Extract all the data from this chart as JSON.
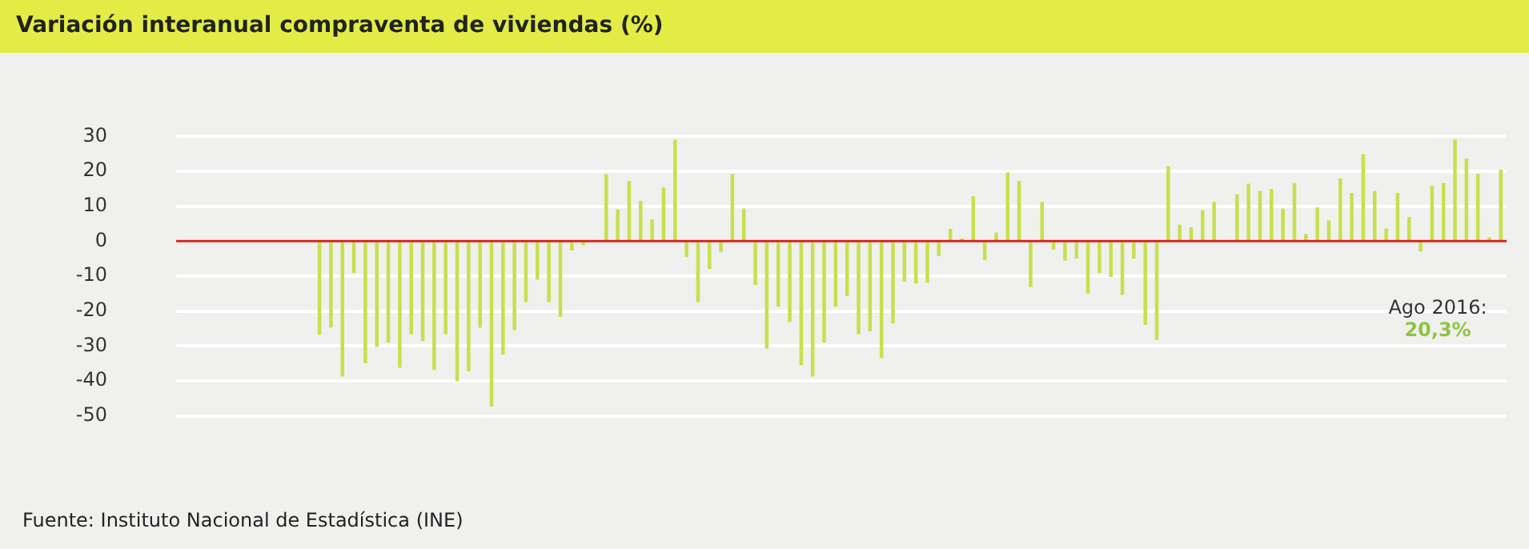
{
  "chart_data": {
    "type": "bar",
    "title": "Variación interanual compraventa de viviendas (%)",
    "categories": [
      null,
      null,
      null,
      null,
      null,
      null,
      null,
      null,
      null,
      null,
      null,
      null,
      null,
      null,
      null,
      null,
      null,
      null,
      null,
      null,
      null,
      null,
      null,
      null,
      null,
      null,
      null,
      null,
      null,
      null,
      null,
      null,
      null,
      null,
      null,
      null,
      null,
      null,
      null,
      null,
      null,
      null,
      null,
      null,
      null,
      null,
      null,
      null,
      null,
      null,
      null,
      null,
      null,
      null,
      null,
      null,
      null,
      null,
      null,
      null,
      null,
      null,
      null,
      null,
      null,
      null,
      null,
      null,
      null,
      null,
      null,
      null,
      null,
      null,
      null,
      null,
      null,
      null,
      null,
      null,
      null,
      null,
      null,
      null,
      null,
      null,
      null,
      null,
      null,
      null,
      null,
      null,
      null,
      null,
      null,
      null,
      null,
      null,
      null,
      null,
      null,
      null,
      null,
      null,
      null,
      null,
      null,
      null,
      null,
      null,
      null,
      null,
      null,
      null,
      null,
      null
    ],
    "values": [
      null,
      null,
      null,
      null,
      null,
      null,
      null,
      null,
      null,
      null,
      null,
      null,
      -26.6,
      -24.6,
      -38.6,
      -9.0,
      -34.8,
      -30.1,
      -28.9,
      -36.1,
      -26.5,
      -28.5,
      -36.7,
      -26.5,
      -39.9,
      -37.1,
      -24.6,
      -47.2,
      -32.3,
      -25.3,
      -17.3,
      -10.9,
      -17.3,
      -21.5,
      -2.5,
      -1.0,
      null,
      19.0,
      8.9,
      17.1,
      11.4,
      6.1,
      15.2,
      28.9,
      -4.4,
      -17.3,
      -7.8,
      -2.9,
      19.1,
      9.2,
      -12.4,
      -30.6,
      -18.6,
      -23.0,
      -35.4,
      -38.6,
      -28.9,
      -18.6,
      -15.6,
      -26.5,
      -25.7,
      -33.3,
      -23.4,
      -11.4,
      -12.0,
      -11.8,
      -4.1,
      3.4,
      0.6,
      12.7,
      -5.3,
      2.3,
      19.5,
      17.1,
      -13.0,
      11.1,
      -2.2,
      -5.4,
      -4.8,
      -14.8,
      -9.0,
      -10.1,
      -15.2,
      -4.8,
      -23.8,
      -28.1,
      21.3,
      4.6,
      3.8,
      8.7,
      11.1,
      null,
      13.3,
      16.3,
      14.2,
      14.8,
      9.2,
      16.5,
      1.9,
      9.5,
      5.8,
      17.8,
      13.7,
      24.7,
      14.2,
      3.5,
      13.7,
      6.8,
      -2.8,
      15.7,
      16.5,
      28.9,
      23.5,
      19.1,
      0.9,
      20.3
    ],
    "color": "#c8e04c",
    "ylim": [
      -50,
      30
    ],
    "yticks": [
      -50,
      -40,
      -30,
      -20,
      -10,
      0,
      10,
      20,
      30
    ],
    "grid": "y",
    "legend": false,
    "tick_labels": "y",
    "ref_lines": [
      {
        "axis": "y",
        "value": 0,
        "color": "#d2231e"
      }
    ],
    "annotations": [
      "Ago 2016:",
      "20,3%",
      "Fuente: Instituto Nacional de Estadística (INE)"
    ]
  }
}
